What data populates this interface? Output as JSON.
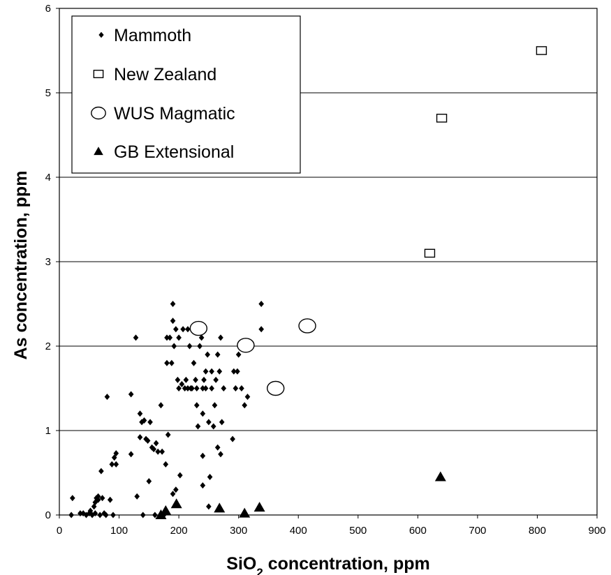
{
  "chart_data": {
    "type": "scatter",
    "title": "",
    "xlabel": {
      "prefix": "SiO",
      "subscript": "2",
      "suffix": " concentration, ppm"
    },
    "ylabel": "As concentration, ppm",
    "xlim": [
      0,
      900
    ],
    "ylim": [
      0,
      6
    ],
    "xticks": [
      "0",
      "100",
      "200",
      "300",
      "400",
      "500",
      "600",
      "700",
      "800",
      "900"
    ],
    "yticks": [
      "0",
      "1",
      "2",
      "3",
      "4",
      "5",
      "6"
    ],
    "grid": "horizontal",
    "legend_position": "top-left",
    "series": [
      {
        "name": "Mammoth",
        "marker": "diamond",
        "color": "#000000",
        "points": [
          [
            22,
            0.2
          ],
          [
            20,
            0.0
          ],
          [
            35,
            0.02
          ],
          [
            40,
            0.02
          ],
          [
            45,
            0.0
          ],
          [
            50,
            0.02
          ],
          [
            52,
            0.05
          ],
          [
            55,
            0.0
          ],
          [
            58,
            0.1
          ],
          [
            60,
            0.02
          ],
          [
            60,
            0.15
          ],
          [
            62,
            0.2
          ],
          [
            65,
            0.18
          ],
          [
            65,
            0.22
          ],
          [
            68,
            0.0
          ],
          [
            70,
            0.52
          ],
          [
            72,
            0.2
          ],
          [
            75,
            0.02
          ],
          [
            78,
            0.0
          ],
          [
            80,
            1.4
          ],
          [
            85,
            0.18
          ],
          [
            88,
            0.6
          ],
          [
            90,
            0.0
          ],
          [
            92,
            0.68
          ],
          [
            95,
            0.6
          ],
          [
            95,
            0.73
          ],
          [
            120,
            1.43
          ],
          [
            120,
            0.72
          ],
          [
            128,
            2.1
          ],
          [
            130,
            0.22
          ],
          [
            135,
            1.2
          ],
          [
            135,
            0.92
          ],
          [
            138,
            1.1
          ],
          [
            140,
            0.0
          ],
          [
            142,
            1.12
          ],
          [
            145,
            0.9
          ],
          [
            148,
            0.88
          ],
          [
            150,
            0.4
          ],
          [
            152,
            1.1
          ],
          [
            155,
            0.8
          ],
          [
            158,
            0.78
          ],
          [
            160,
            0.0
          ],
          [
            162,
            0.85
          ],
          [
            165,
            0.75
          ],
          [
            170,
            1.3
          ],
          [
            172,
            0.75
          ],
          [
            175,
            0.0
          ],
          [
            178,
            0.6
          ],
          [
            180,
            1.8
          ],
          [
            180,
            2.1
          ],
          [
            182,
            0.95
          ],
          [
            185,
            2.1
          ],
          [
            188,
            1.8
          ],
          [
            190,
            2.5
          ],
          [
            190,
            2.3
          ],
          [
            190,
            0.25
          ],
          [
            192,
            2.0
          ],
          [
            195,
            2.2
          ],
          [
            195,
            0.3
          ],
          [
            198,
            1.6
          ],
          [
            200,
            2.1
          ],
          [
            200,
            1.5
          ],
          [
            202,
            0.47
          ],
          [
            205,
            1.55
          ],
          [
            207,
            2.2
          ],
          [
            210,
            1.5
          ],
          [
            212,
            1.6
          ],
          [
            215,
            2.2
          ],
          [
            215,
            1.5
          ],
          [
            218,
            2.0
          ],
          [
            220,
            1.5
          ],
          [
            222,
            1.5
          ],
          [
            225,
            1.8
          ],
          [
            228,
            1.6
          ],
          [
            230,
            1.3
          ],
          [
            230,
            1.5
          ],
          [
            232,
            1.05
          ],
          [
            235,
            2.0
          ],
          [
            238,
            2.1
          ],
          [
            240,
            1.5
          ],
          [
            240,
            1.2
          ],
          [
            240,
            0.35
          ],
          [
            240,
            0.7
          ],
          [
            242,
            1.6
          ],
          [
            245,
            1.7
          ],
          [
            245,
            1.5
          ],
          [
            248,
            1.9
          ],
          [
            250,
            0.1
          ],
          [
            250,
            1.1
          ],
          [
            252,
            0.45
          ],
          [
            255,
            1.7
          ],
          [
            255,
            1.5
          ],
          [
            258,
            1.05
          ],
          [
            260,
            1.3
          ],
          [
            262,
            1.6
          ],
          [
            265,
            0.8
          ],
          [
            265,
            1.9
          ],
          [
            268,
            1.7
          ],
          [
            270,
            2.1
          ],
          [
            270,
            0.72
          ],
          [
            272,
            1.1
          ],
          [
            275,
            1.5
          ],
          [
            290,
            0.9
          ],
          [
            292,
            1.7
          ],
          [
            295,
            1.5
          ],
          [
            298,
            1.7
          ],
          [
            300,
            1.9
          ],
          [
            305,
            1.5
          ],
          [
            310,
            1.3
          ],
          [
            315,
            1.4
          ],
          [
            338,
            2.5
          ],
          [
            338,
            2.2
          ]
        ]
      },
      {
        "name": "New Zealand",
        "marker": "square-open",
        "color": "#000000",
        "points": [
          [
            620,
            3.1
          ],
          [
            640,
            4.7
          ],
          [
            807,
            5.5
          ]
        ]
      },
      {
        "name": "WUS Magmatic",
        "marker": "circle-open",
        "color": "#000000",
        "points": [
          [
            233,
            2.21
          ],
          [
            312,
            2.01
          ],
          [
            362,
            1.5
          ],
          [
            415,
            2.24
          ]
        ]
      },
      {
        "name": "GB Extensional",
        "marker": "triangle",
        "color": "#000000",
        "points": [
          [
            170,
            0.0
          ],
          [
            178,
            0.05
          ],
          [
            196,
            0.13
          ],
          [
            268,
            0.08
          ],
          [
            310,
            0.02
          ],
          [
            335,
            0.09
          ],
          [
            638,
            0.45
          ]
        ]
      }
    ]
  }
}
